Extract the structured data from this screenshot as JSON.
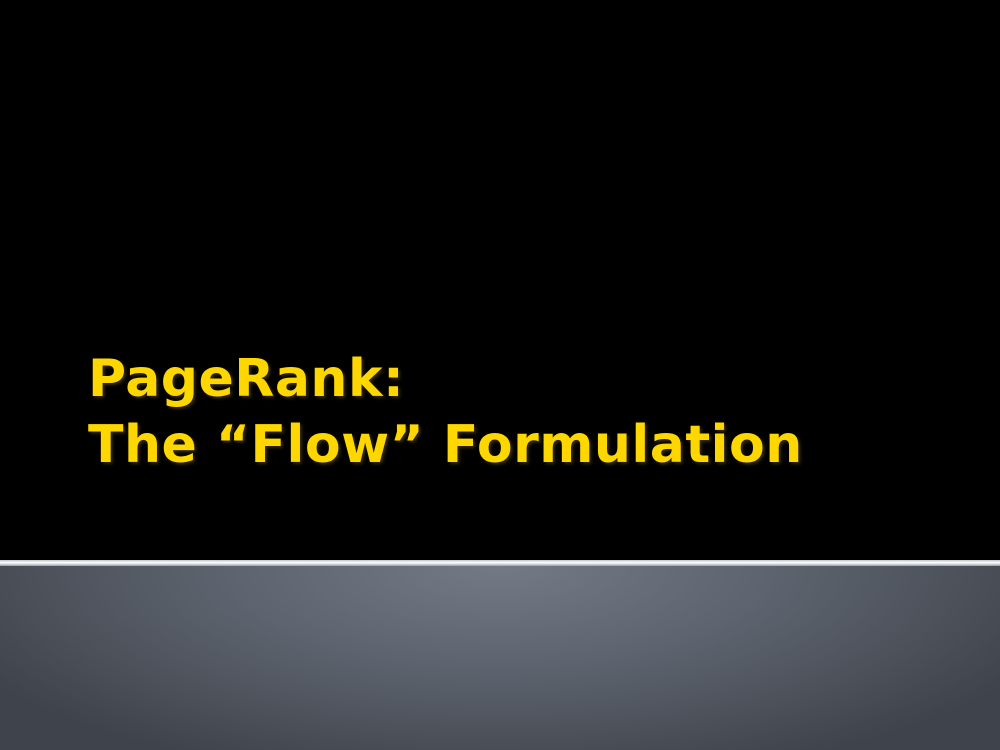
{
  "slide": {
    "title_line1": "PageRank:",
    "title_line2": "The “Flow” Formulation"
  },
  "colors": {
    "title": "#FFD700",
    "background": "#000000",
    "footer_band": "#5e646f"
  }
}
